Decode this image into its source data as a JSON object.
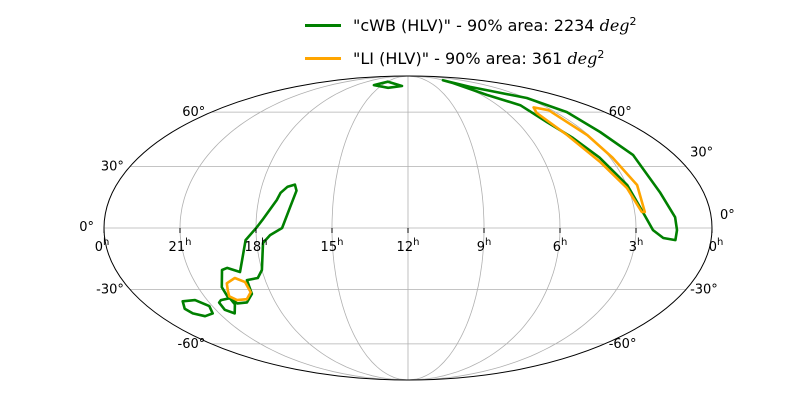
{
  "chart_data": {
    "type": "skymap-mollweide",
    "title": "",
    "grid": true,
    "ra_ticks": [
      "0",
      "21",
      "18",
      "15",
      "12",
      "9",
      "6",
      "3",
      "0"
    ],
    "ra_tick_values": [
      24,
      21,
      18,
      15,
      12,
      9,
      6,
      3,
      0
    ],
    "ra_unit": "h",
    "dec_ticks_left": [
      "60°",
      "30°",
      "0°",
      "-30°",
      "-60°"
    ],
    "dec_ticks_right": [
      "60°",
      "30°",
      "0°",
      "-30°",
      "-60°"
    ],
    "dec_tick_values": [
      60,
      30,
      0,
      -30,
      -60
    ],
    "legend_placement": "top-center",
    "series": [
      {
        "name": "\"cWB (HLV)\" - 90% area: 2234",
        "unit": "deg",
        "unit_exp": "2",
        "color": "#008000",
        "contours": [
          [
            [
              16.66,
              21
            ],
            [
              16.54,
              18
            ],
            [
              16.7,
              10
            ],
            [
              16.97,
              0
            ],
            [
              17.45,
              -3.4
            ],
            [
              17.75,
              -7.2
            ],
            [
              18.0,
              -20.3
            ],
            [
              18.28,
              -24.3
            ],
            [
              18.77,
              -25.3
            ],
            [
              18.84,
              -32.3
            ],
            [
              19.29,
              -36.7
            ],
            [
              19.76,
              -37.2
            ],
            [
              19.98,
              -33.5
            ],
            [
              19.98,
              -28.9
            ],
            [
              19.64,
              -20.3
            ],
            [
              19.4,
              -19.3
            ],
            [
              18.93,
              -21.3
            ],
            [
              18.7,
              -15.5
            ],
            [
              18.43,
              -5.8
            ],
            [
              17.96,
              0.5
            ],
            [
              17.76,
              3.8
            ],
            [
              17.27,
              13.5
            ],
            [
              17.17,
              17
            ],
            [
              16.94,
              20
            ]
          ],
          [
            [
              20.39,
              -35.5
            ],
            [
              19.93,
              -34.5
            ],
            [
              19.9,
              -37.7
            ],
            [
              20.27,
              -42.5
            ],
            [
              20.58,
              -40.6
            ],
            [
              20.56,
              -36.8
            ]
          ],
          [
            [
              22.15,
              -36.1
            ],
            [
              21.55,
              -35.5
            ],
            [
              21.14,
              -38.6
            ],
            [
              21.32,
              -42.5
            ],
            [
              21.83,
              -44
            ],
            [
              22.27,
              -42.5
            ],
            [
              22.4,
              -40
            ]
          ],
          [
            [
              6.1,
              84
            ],
            [
              5.42,
              77.7
            ],
            [
              2.95,
              69.3
            ],
            [
              2.31,
              60
            ],
            [
              2.22,
              48.3
            ],
            [
              1.87,
              36
            ],
            [
              1.77,
              17.3
            ],
            [
              1.43,
              5.2
            ],
            [
              1.38,
              -1
            ],
            [
              1.41,
              -5.8
            ],
            [
              1.9,
              -4.8
            ],
            [
              2.33,
              -1
            ],
            [
              2.68,
              7.7
            ],
            [
              2.98,
              20.8
            ],
            [
              3.47,
              34.6
            ],
            [
              3.92,
              45
            ],
            [
              4.35,
              54
            ],
            [
              4.48,
              64.4
            ],
            [
              5.56,
              71.5
            ],
            [
              6.08,
              81.1
            ]
          ],
          [
            [
              15.95,
              79.3
            ],
            [
              14.92,
              82.5
            ],
            [
              12.66,
              78.5
            ],
            [
              14.03,
              77
            ]
          ]
        ]
      },
      {
        "name": "\"LI (HLV)\" - 90% area: 361",
        "unit": "deg",
        "unit_exp": "2",
        "color": "#FFA500",
        "contours": [
          [
            [
              19.68,
              -26.9
            ],
            [
              19.24,
              -24.3
            ],
            [
              18.88,
              -26.3
            ],
            [
              18.85,
              -31.4
            ],
            [
              19.2,
              -35
            ],
            [
              19.67,
              -35.5
            ],
            [
              19.9,
              -33.5
            ],
            [
              19.8,
              -30.5
            ]
          ],
          [
            [
              3.85,
              63
            ],
            [
              3.22,
              61.2
            ],
            [
              3.06,
              46.6
            ],
            [
              2.89,
              34.6
            ],
            [
              2.57,
              20.8
            ],
            [
              2.6,
              7.7
            ],
            [
              2.72,
              7.7
            ],
            [
              3.04,
              19.3
            ],
            [
              3.58,
              32.5
            ],
            [
              4.06,
              46.6
            ],
            [
              4.23,
              59.5
            ]
          ]
        ]
      }
    ]
  }
}
